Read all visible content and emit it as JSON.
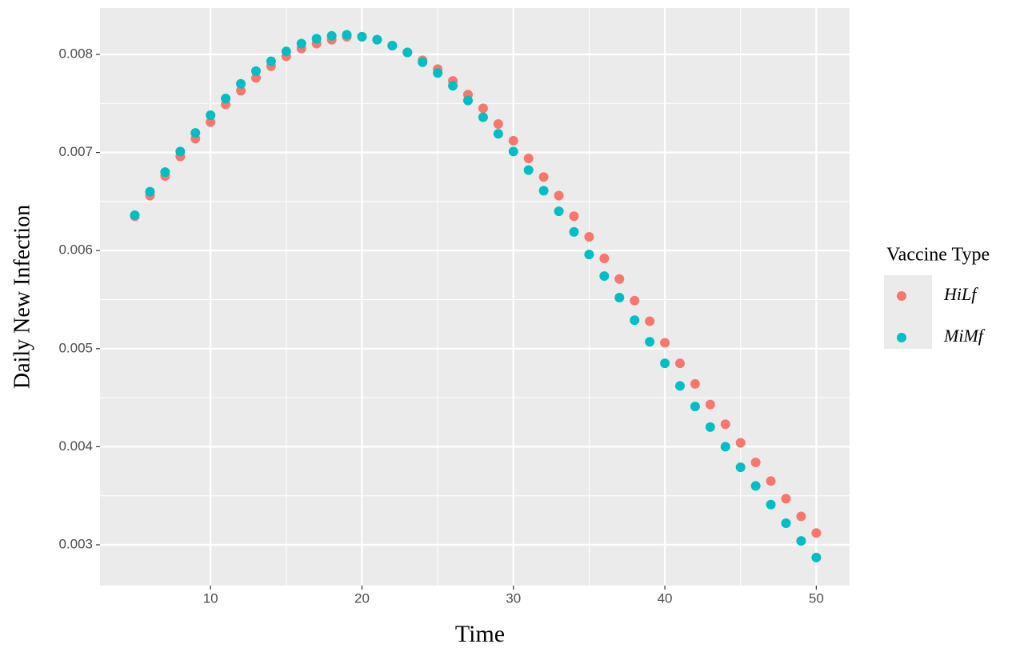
{
  "chart_data": {
    "type": "scatter",
    "x_label": "Time",
    "y_label": "Daily New Infection",
    "legend_title": "Vaccine Type",
    "legend_position": "right",
    "grid": true,
    "x": [
      5,
      6,
      7,
      8,
      9,
      10,
      11,
      12,
      13,
      14,
      15,
      16,
      17,
      18,
      19,
      20,
      21,
      22,
      23,
      24,
      25,
      26,
      27,
      28,
      29,
      30,
      31,
      32,
      33,
      34,
      35,
      36,
      37,
      38,
      39,
      40,
      41,
      42,
      43,
      44,
      45,
      46,
      47,
      48,
      49,
      50
    ],
    "series": [
      {
        "name": "HiLf",
        "color": "#f8766d",
        "values": [
          0.00635,
          0.00656,
          0.00676,
          0.00696,
          0.00714,
          0.00731,
          0.00749,
          0.00763,
          0.00776,
          0.00788,
          0.00798,
          0.00806,
          0.00811,
          0.00815,
          0.00818,
          0.00818,
          0.00815,
          0.00809,
          0.00802,
          0.00794,
          0.00785,
          0.00773,
          0.00759,
          0.00745,
          0.00729,
          0.00712,
          0.00694,
          0.00675,
          0.00656,
          0.00635,
          0.00614,
          0.00592,
          0.00571,
          0.00549,
          0.00528,
          0.00506,
          0.00485,
          0.00464,
          0.00443,
          0.00423,
          0.00404,
          0.00384,
          0.00365,
          0.00347,
          0.00329,
          0.00312
        ]
      },
      {
        "name": "MiMf",
        "color": "#00bfc4",
        "values": [
          0.00636,
          0.0066,
          0.0068,
          0.00701,
          0.0072,
          0.00738,
          0.00755,
          0.0077,
          0.00783,
          0.00793,
          0.00803,
          0.00811,
          0.00816,
          0.00819,
          0.0082,
          0.00818,
          0.00815,
          0.00809,
          0.00802,
          0.00792,
          0.00781,
          0.00768,
          0.00753,
          0.00736,
          0.00719,
          0.00701,
          0.00682,
          0.00661,
          0.0064,
          0.00619,
          0.00596,
          0.00574,
          0.00552,
          0.00529,
          0.00507,
          0.00485,
          0.00462,
          0.00441,
          0.0042,
          0.004,
          0.00379,
          0.0036,
          0.00341,
          0.00322,
          0.00304,
          0.00287
        ]
      }
    ],
    "xlim": [
      2.7,
      52.2
    ],
    "xticks": [
      10,
      20,
      30,
      40,
      50
    ],
    "ylim": [
      0.002584,
      0.008473
    ],
    "yticks": [
      {
        "value": 0.003,
        "label": "0.003"
      },
      {
        "value": 0.004,
        "label": "0.004"
      },
      {
        "value": 0.005,
        "label": "0.005"
      },
      {
        "value": 0.006,
        "label": "0.006"
      },
      {
        "value": 0.007,
        "label": "0.007"
      },
      {
        "value": 0.008,
        "label": "0.008"
      }
    ]
  }
}
